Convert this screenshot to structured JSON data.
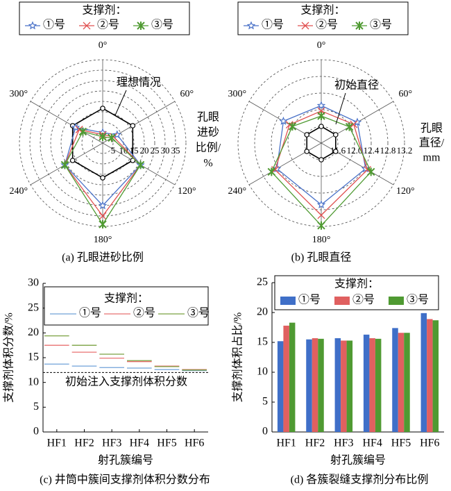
{
  "chart_data": [
    {
      "type": "radar",
      "caption": "(a) 孔眼进砂比例",
      "legend_title": "支撑剂：",
      "categories": [
        "0°",
        "60°",
        "120°",
        "180°",
        "240°",
        "300°"
      ],
      "series": [
        {
          "name": "①号",
          "color": "#4a72c8",
          "marker": "star",
          "values": [
            5,
            8,
            21,
            30,
            21,
            15
          ]
        },
        {
          "name": "②号",
          "color": "#e05050",
          "marker": "x",
          "values": [
            4,
            6,
            21,
            35,
            21,
            13
          ]
        },
        {
          "name": "③号",
          "color": "#4f9a32",
          "marker": "asterisk",
          "values": [
            3,
            5,
            21,
            39,
            21,
            11
          ]
        }
      ],
      "reference": {
        "label": "理想情况",
        "values": [
          16.67,
          16.67,
          16.67,
          16.67,
          16.67,
          16.67
        ]
      },
      "rlim": [
        0,
        40
      ],
      "rticks": [
        5,
        10,
        15,
        20,
        25,
        30,
        35
      ],
      "r_label": [
        "孔眼",
        "进砂",
        "比例/",
        "%"
      ],
      "grid": true
    },
    {
      "type": "radar",
      "caption": "(b) 孔眼直径",
      "legend_title": "支撑剂：",
      "categories": [
        "0°",
        "60°",
        "120°",
        "180°",
        "240°",
        "300°"
      ],
      "series": [
        {
          "name": "①号",
          "color": "#4a72c8",
          "marker": "star",
          "values": [
            12.1,
            12.2,
            12.43,
            12.68,
            12.43,
            12.25
          ]
        },
        {
          "name": "②号",
          "color": "#e05050",
          "marker": "x",
          "values": [
            11.97,
            12.1,
            12.48,
            12.93,
            12.48,
            12.08
          ]
        },
        {
          "name": "③号",
          "color": "#4f9a32",
          "marker": "asterisk",
          "values": [
            11.85,
            11.98,
            12.58,
            13.18,
            12.58,
            12.0
          ]
        }
      ],
      "reference": {
        "label": "初始直径",
        "values": [
          11.6,
          11.6,
          11.6,
          11.6,
          11.6,
          11.6
        ]
      },
      "rlim": [
        11.2,
        13.2
      ],
      "rticks": [
        11.6,
        {
          "value": 12,
          "label": "12.0"
        },
        12.4,
        12.8,
        13.2
      ],
      "r_label": [
        "孔眼",
        "直径/",
        "mm"
      ],
      "grid": true
    },
    {
      "type": "step",
      "caption": "(c) 井筒中簇间支撑剂体积分数分布",
      "legend_title": "支撑剂：",
      "categories": [
        "HF1",
        "HF2",
        "HF3",
        "HF4",
        "HF5",
        "HF6"
      ],
      "series": [
        {
          "name": "①号",
          "color": "#6fa0d8",
          "values": [
            13.7,
            13.3,
            13.0,
            12.9,
            12.6,
            12.4
          ]
        },
        {
          "name": "②号",
          "color": "#e87070",
          "values": [
            17.5,
            16.1,
            14.9,
            14.2,
            13.3,
            12.6
          ]
        },
        {
          "name": "③号",
          "color": "#7aa040",
          "values": [
            19.4,
            17.5,
            15.7,
            14.4,
            13.2,
            12.5
          ]
        }
      ],
      "reference": {
        "label": "初始注入支撑剂体积分数",
        "value": 12
      },
      "ylim": [
        0,
        30
      ],
      "yticks": [
        0,
        5,
        10,
        15,
        20,
        25,
        30
      ],
      "y_label": "支撑剂体积分数/%",
      "x_label": "射孔簇编号"
    },
    {
      "type": "bar",
      "caption": "(d) 各簇裂缝支撑剂分布比例",
      "legend_title": "支撑剂：",
      "categories": [
        "HF1",
        "HF2",
        "HF3",
        "HF4",
        "HF5",
        "HF6"
      ],
      "series": [
        {
          "name": "①号",
          "color": "#3f6fc8",
          "values": [
            15.2,
            15.5,
            15.7,
            16.3,
            17.4,
            19.9
          ]
        },
        {
          "name": "②号",
          "color": "#e06060",
          "values": [
            17.8,
            15.7,
            15.3,
            15.7,
            16.6,
            18.9
          ]
        },
        {
          "name": "③号",
          "color": "#4f9a32",
          "values": [
            18.3,
            15.6,
            15.3,
            15.6,
            16.6,
            18.7
          ]
        }
      ],
      "ylim": [
        0,
        25
      ],
      "yticks": [
        0,
        5,
        10,
        15,
        20,
        25
      ],
      "y_label": "支撑剂体积占比/%",
      "x_label": "射孔簇编号"
    }
  ]
}
